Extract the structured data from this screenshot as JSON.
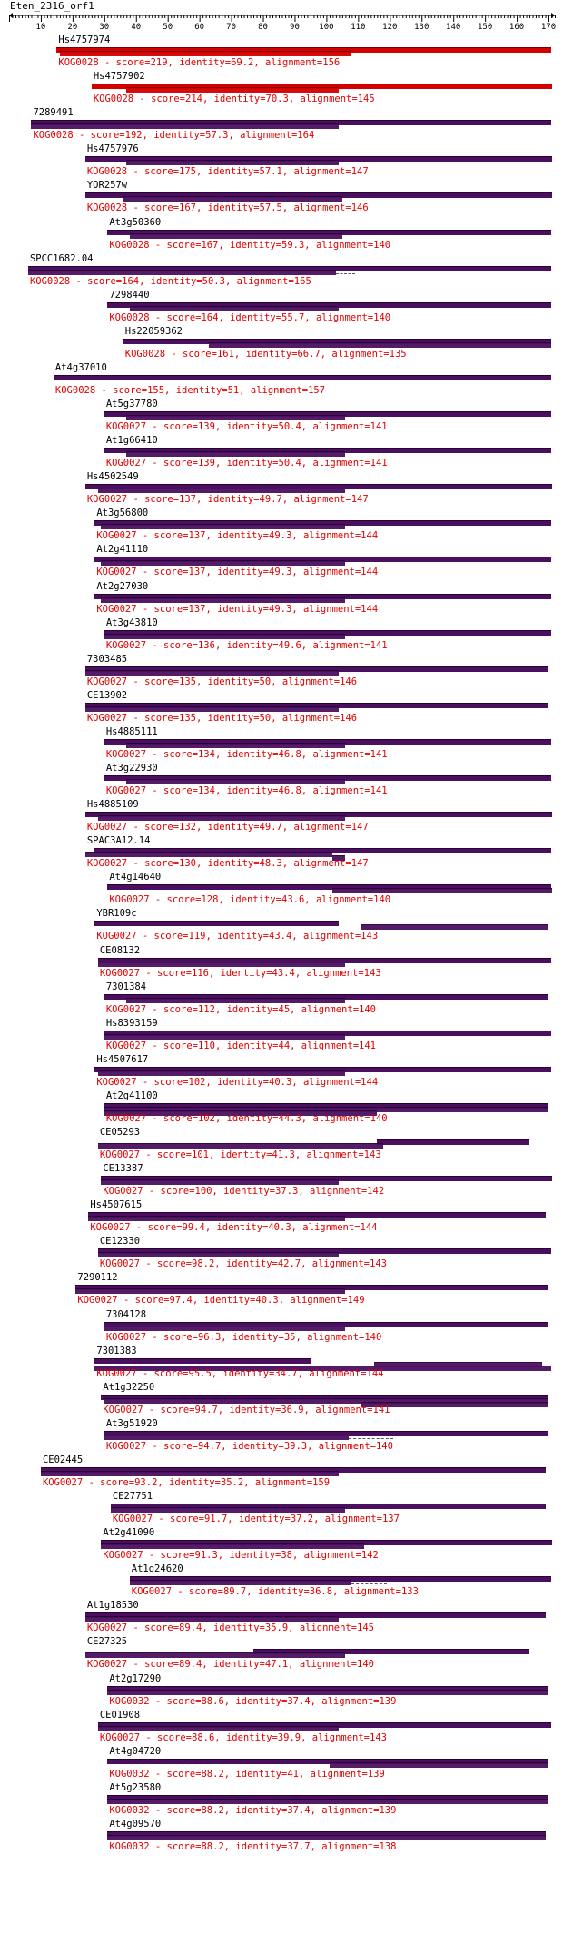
{
  "query": {
    "title": "Eten_2316_orf1"
  },
  "axis": {
    "min": 0,
    "max": 172,
    "ticks": [
      10,
      20,
      30,
      40,
      50,
      60,
      70,
      80,
      90,
      100,
      110,
      120,
      130,
      140,
      150,
      160,
      170
    ]
  },
  "colors": {
    "bar_best": "#d40000",
    "bar": "#4b0f5f",
    "hit_text": "#e00000"
  },
  "hits": [
    {
      "name": "Hs4757974",
      "kog": "KOG0028",
      "score": "219",
      "identity": "69.2",
      "alignment": "156",
      "start": 15,
      "end": 171,
      "segments": [
        [
          15,
          171
        ],
        [
          16,
          108
        ]
      ],
      "best": true
    },
    {
      "name": "Hs4757902",
      "kog": "KOG0028",
      "score": "214",
      "identity": "70.3",
      "alignment": "145",
      "start": 26,
      "end": 171,
      "segments": [
        [
          26,
          171
        ],
        [
          37,
          104
        ]
      ],
      "best": true
    },
    {
      "name": "7289491",
      "kog": "KOG0028",
      "score": "192",
      "identity": "57.3",
      "alignment": "164",
      "start": 7,
      "end": 171,
      "segments": [
        [
          7,
          171
        ],
        [
          7,
          104
        ]
      ]
    },
    {
      "name": "Hs4757976",
      "kog": "KOG0028",
      "score": "175",
      "identity": "57.1",
      "alignment": "147",
      "start": 24,
      "end": 171,
      "segments": [
        [
          24,
          171
        ],
        [
          37,
          104
        ]
      ]
    },
    {
      "name": "YOR257w",
      "kog": "KOG0028",
      "score": "167",
      "identity": "57.5",
      "alignment": "146",
      "start": 24,
      "end": 171,
      "segments": [
        [
          24,
          171
        ],
        [
          36,
          105
        ]
      ]
    },
    {
      "name": "At3g50360",
      "kog": "KOG0028",
      "score": "167",
      "identity": "59.3",
      "alignment": "140",
      "start": 31,
      "end": 171,
      "segments": [
        [
          31,
          171
        ],
        [
          38,
          105
        ]
      ]
    },
    {
      "name": "SPCC1682.04",
      "kog": "KOG0028",
      "score": "164",
      "identity": "50.3",
      "alignment": "165",
      "start": 6,
      "end": 171,
      "segments": [
        [
          6,
          171
        ],
        [
          6,
          103
        ]
      ],
      "gap": [
        103,
        109
      ]
    },
    {
      "name": "7298440",
      "kog": "KOG0028",
      "score": "164",
      "identity": "55.7",
      "alignment": "140",
      "start": 31,
      "end": 171,
      "segments": [
        [
          31,
          171
        ],
        [
          38,
          104
        ]
      ]
    },
    {
      "name": "Hs22059362",
      "kog": "KOG0028",
      "score": "161",
      "identity": "66.7",
      "alignment": "135",
      "start": 36,
      "end": 171,
      "segments": [
        [
          36,
          171
        ],
        [
          63,
          171
        ]
      ]
    },
    {
      "name": "At4g37010",
      "kog": "KOG0028",
      "score": "155",
      "identity": "51",
      "alignment": "157",
      "start": 14,
      "end": 171,
      "segments": [
        [
          14,
          171
        ]
      ]
    },
    {
      "name": "At5g37780",
      "kog": "KOG0027",
      "score": "139",
      "identity": "50.4",
      "alignment": "141",
      "start": 30,
      "end": 171,
      "segments": [
        [
          30,
          171
        ],
        [
          37,
          106
        ]
      ]
    },
    {
      "name": "At1g66410",
      "kog": "KOG0027",
      "score": "139",
      "identity": "50.4",
      "alignment": "141",
      "start": 30,
      "end": 171,
      "segments": [
        [
          30,
          171
        ],
        [
          37,
          106
        ]
      ]
    },
    {
      "name": "Hs4502549",
      "kog": "KOG0027",
      "score": "137",
      "identity": "49.7",
      "alignment": "147",
      "start": 24,
      "end": 171,
      "segments": [
        [
          24,
          171
        ],
        [
          28,
          106
        ]
      ]
    },
    {
      "name": "At3g56800",
      "kog": "KOG0027",
      "score": "137",
      "identity": "49.3",
      "alignment": "144",
      "start": 27,
      "end": 171,
      "segments": [
        [
          27,
          171
        ],
        [
          29,
          106
        ]
      ]
    },
    {
      "name": "At2g41110",
      "kog": "KOG0027",
      "score": "137",
      "identity": "49.3",
      "alignment": "144",
      "start": 27,
      "end": 171,
      "segments": [
        [
          27,
          171
        ],
        [
          29,
          106
        ]
      ]
    },
    {
      "name": "At2g27030",
      "kog": "KOG0027",
      "score": "137",
      "identity": "49.3",
      "alignment": "144",
      "start": 27,
      "end": 171,
      "segments": [
        [
          27,
          171
        ],
        [
          29,
          106
        ]
      ]
    },
    {
      "name": "At3g43810",
      "kog": "KOG0027",
      "score": "136",
      "identity": "49.6",
      "alignment": "141",
      "start": 30,
      "end": 171,
      "segments": [
        [
          30,
          171
        ],
        [
          30,
          106
        ]
      ]
    },
    {
      "name": "7303485",
      "kog": "KOG0027",
      "score": "135",
      "identity": "50",
      "alignment": "146",
      "start": 24,
      "end": 170,
      "segments": [
        [
          24,
          170
        ],
        [
          24,
          104
        ]
      ]
    },
    {
      "name": "CE13902",
      "kog": "KOG0027",
      "score": "135",
      "identity": "50",
      "alignment": "146",
      "start": 24,
      "end": 170,
      "segments": [
        [
          24,
          170
        ],
        [
          24,
          104
        ]
      ]
    },
    {
      "name": "Hs4885111",
      "kog": "KOG0027",
      "score": "134",
      "identity": "46.8",
      "alignment": "141",
      "start": 30,
      "end": 171,
      "segments": [
        [
          30,
          171
        ],
        [
          37,
          106
        ]
      ]
    },
    {
      "name": "At3g22930",
      "kog": "KOG0027",
      "score": "134",
      "identity": "46.8",
      "alignment": "141",
      "start": 30,
      "end": 171,
      "segments": [
        [
          30,
          171
        ],
        [
          37,
          106
        ]
      ]
    },
    {
      "name": "Hs4885109",
      "kog": "KOG0027",
      "score": "132",
      "identity": "49.7",
      "alignment": "147",
      "start": 24,
      "end": 171,
      "segments": [
        [
          24,
          171
        ],
        [
          28,
          106
        ]
      ]
    },
    {
      "name": "SPAC3A12.14",
      "kog": "KOG0027",
      "score": "130",
      "identity": "48.3",
      "alignment": "147",
      "start": 24,
      "end": 171,
      "segments": [
        [
          27,
          171
        ],
        [
          24,
          102
        ],
        [
          102,
          106
        ]
      ]
    },
    {
      "name": "At4g14640",
      "kog": "KOG0027",
      "score": "128",
      "identity": "43.6",
      "alignment": "140",
      "start": 31,
      "end": 171,
      "segments": [
        [
          31,
          171
        ],
        [
          102,
          171
        ]
      ]
    },
    {
      "name": "YBR109c",
      "kog": "KOG0027",
      "score": "119",
      "identity": "43.4",
      "alignment": "143",
      "start": 27,
      "end": 170,
      "segments": [
        [
          27,
          104
        ],
        [
          111,
          170
        ]
      ]
    },
    {
      "name": "CE08132",
      "kog": "KOG0027",
      "score": "116",
      "identity": "43.4",
      "alignment": "143",
      "start": 28,
      "end": 171,
      "segments": [
        [
          28,
          171
        ],
        [
          28,
          106
        ]
      ]
    },
    {
      "name": "7301384",
      "kog": "KOG0027",
      "score": "112",
      "identity": "45",
      "alignment": "140",
      "start": 30,
      "end": 170,
      "segments": [
        [
          30,
          170
        ],
        [
          37,
          106
        ]
      ]
    },
    {
      "name": "Hs8393159",
      "kog": "KOG0027",
      "score": "110",
      "identity": "44",
      "alignment": "141",
      "start": 30,
      "end": 171,
      "segments": [
        [
          30,
          171
        ],
        [
          30,
          106
        ]
      ]
    },
    {
      "name": "Hs4507617",
      "kog": "KOG0027",
      "score": "102",
      "identity": "40.3",
      "alignment": "144",
      "start": 27,
      "end": 171,
      "segments": [
        [
          27,
          171
        ],
        [
          28,
          106
        ]
      ]
    },
    {
      "name": "At2g41100",
      "kog": "KOG0027",
      "score": "102",
      "identity": "44.3",
      "alignment": "140",
      "start": 30,
      "end": 170,
      "segments": [
        [
          30,
          170
        ],
        [
          30,
          170
        ],
        [
          30,
          116
        ]
      ]
    },
    {
      "name": "CE05293",
      "kog": "KOG0027",
      "score": "101",
      "identity": "41.3",
      "alignment": "143",
      "start": 28,
      "end": 171,
      "segments": [
        [
          116,
          164
        ],
        [
          28,
          118
        ]
      ]
    },
    {
      "name": "CE13387",
      "kog": "KOG0027",
      "score": "100",
      "identity": "37.3",
      "alignment": "142",
      "start": 29,
      "end": 171,
      "segments": [
        [
          29,
          171
        ],
        [
          29,
          104
        ]
      ]
    },
    {
      "name": "Hs4507615",
      "kog": "KOG0027",
      "score": "99.4",
      "identity": "40.3",
      "alignment": "144",
      "start": 25,
      "end": 169,
      "segments": [
        [
          25,
          169
        ],
        [
          25,
          106
        ]
      ]
    },
    {
      "name": "CE12330",
      "kog": "KOG0027",
      "score": "98.2",
      "identity": "42.7",
      "alignment": "143",
      "start": 28,
      "end": 171,
      "segments": [
        [
          28,
          171
        ],
        [
          28,
          104
        ]
      ]
    },
    {
      "name": "7290112",
      "kog": "KOG0027",
      "score": "97.4",
      "identity": "40.3",
      "alignment": "149",
      "start": 21,
      "end": 170,
      "segments": [
        [
          21,
          170
        ],
        [
          21,
          106
        ]
      ]
    },
    {
      "name": "7304128",
      "kog": "KOG0027",
      "score": "96.3",
      "identity": "35",
      "alignment": "140",
      "start": 30,
      "end": 170,
      "segments": [
        [
          30,
          170
        ],
        [
          30,
          106
        ]
      ]
    },
    {
      "name": "7301383",
      "kog": "KOG0027",
      "score": "95.5",
      "identity": "34.7",
      "alignment": "144",
      "start": 27,
      "end": 171,
      "segments": [
        [
          27,
          95
        ],
        [
          115,
          168
        ],
        [
          27,
          171
        ]
      ]
    },
    {
      "name": "At1g32250",
      "kog": "KOG0027",
      "score": "94.7",
      "identity": "36.9",
      "alignment": "141",
      "start": 29,
      "end": 170,
      "segments": [
        [
          29,
          170
        ],
        [
          30,
          170
        ],
        [
          111,
          170
        ]
      ]
    },
    {
      "name": "At3g51920",
      "kog": "KOG0027",
      "score": "94.7",
      "identity": "39.3",
      "alignment": "140",
      "start": 30,
      "end": 170,
      "segments": [
        [
          30,
          170
        ],
        [
          30,
          107
        ]
      ],
      "gap": [
        107,
        121
      ]
    },
    {
      "name": "CE02445",
      "kog": "KOG0027",
      "score": "93.2",
      "identity": "35.2",
      "alignment": "159",
      "start": 10,
      "end": 169,
      "segments": [
        [
          10,
          169
        ],
        [
          10,
          104
        ]
      ]
    },
    {
      "name": "CE27751",
      "kog": "KOG0027",
      "score": "91.7",
      "identity": "37.2",
      "alignment": "137",
      "start": 32,
      "end": 169,
      "segments": [
        [
          32,
          169
        ],
        [
          32,
          106
        ]
      ]
    },
    {
      "name": "At2g41090",
      "kog": "KOG0027",
      "score": "91.3",
      "identity": "38",
      "alignment": "142",
      "start": 29,
      "end": 171,
      "segments": [
        [
          29,
          171
        ],
        [
          29,
          112
        ]
      ]
    },
    {
      "name": "At1g24620",
      "kog": "KOG0027",
      "score": "89.7",
      "identity": "36.8",
      "alignment": "133",
      "start": 38,
      "end": 171,
      "segments": [
        [
          38,
          171
        ],
        [
          38,
          108
        ]
      ],
      "gap": [
        108,
        119
      ]
    },
    {
      "name": "At1g18530",
      "kog": "KOG0027",
      "score": "89.4",
      "identity": "35.9",
      "alignment": "145",
      "start": 24,
      "end": 169,
      "segments": [
        [
          24,
          169
        ],
        [
          24,
          104
        ]
      ]
    },
    {
      "name": "CE27325",
      "kog": "KOG0027",
      "score": "89.4",
      "identity": "47.1",
      "alignment": "140",
      "start": 24,
      "end": 164,
      "segments": [
        [
          77,
          164
        ],
        [
          24,
          106
        ]
      ]
    },
    {
      "name": "At2g17290",
      "kog": "KOG0032",
      "score": "88.6",
      "identity": "37.4",
      "alignment": "139",
      "start": 31,
      "end": 170,
      "segments": [
        [
          31,
          170
        ],
        [
          31,
          170
        ]
      ]
    },
    {
      "name": "CE01908",
      "kog": "KOG0027",
      "score": "88.6",
      "identity": "39.9",
      "alignment": "143",
      "start": 28,
      "end": 171,
      "segments": [
        [
          28,
          171
        ],
        [
          28,
          104
        ]
      ]
    },
    {
      "name": "At4g04720",
      "kog": "KOG0032",
      "score": "88.2",
      "identity": "41",
      "alignment": "139",
      "start": 31,
      "end": 170,
      "segments": [
        [
          31,
          170
        ],
        [
          101,
          170
        ]
      ]
    },
    {
      "name": "At5g23580",
      "kog": "KOG0032",
      "score": "88.2",
      "identity": "37.4",
      "alignment": "139",
      "start": 31,
      "end": 170,
      "segments": [
        [
          31,
          170
        ],
        [
          31,
          170
        ]
      ]
    },
    {
      "name": "At4g09570",
      "kog": "KOG0032",
      "score": "88.2",
      "identity": "37.7",
      "alignment": "138",
      "start": 31,
      "end": 169,
      "segments": [
        [
          31,
          169
        ],
        [
          31,
          169
        ]
      ]
    }
  ]
}
